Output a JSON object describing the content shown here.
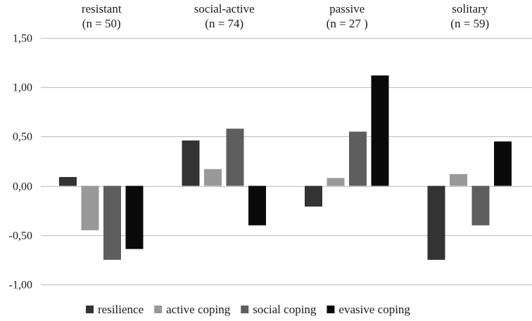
{
  "chart_data": {
    "type": "bar",
    "title": "",
    "xlabel": "",
    "ylabel": "",
    "ylim": [
      -1.0,
      1.5
    ],
    "y_ticks": [
      -1.0,
      -0.5,
      0.0,
      0.5,
      1.0,
      1.5
    ],
    "y_tick_labels": [
      "-1,00",
      "-0,50",
      "0,00",
      "0,50",
      "1,00",
      "1,50"
    ],
    "grid": true,
    "legend_position": "bottom",
    "categories": [
      {
        "name": "resistant",
        "n_label": "(n = 50)"
      },
      {
        "name": "social-active",
        "n_label": "(n = 74)"
      },
      {
        "name": "passive",
        "n_label": "(n = 27 )"
      },
      {
        "name": "solitary",
        "n_label": "(n = 59)"
      }
    ],
    "series": [
      {
        "name": "resilience",
        "color": "#333333",
        "values": [
          0.09,
          0.46,
          -0.21,
          -0.75
        ]
      },
      {
        "name": "active coping",
        "color": "#999999",
        "values": [
          -0.45,
          0.17,
          0.08,
          0.12
        ]
      },
      {
        "name": "social coping",
        "color": "#5e5e5e",
        "values": [
          -0.75,
          0.58,
          0.55,
          -0.4
        ]
      },
      {
        "name": "evasive coping",
        "color": "#0a0a0a",
        "values": [
          -0.64,
          -0.4,
          1.12,
          0.45
        ]
      }
    ]
  }
}
